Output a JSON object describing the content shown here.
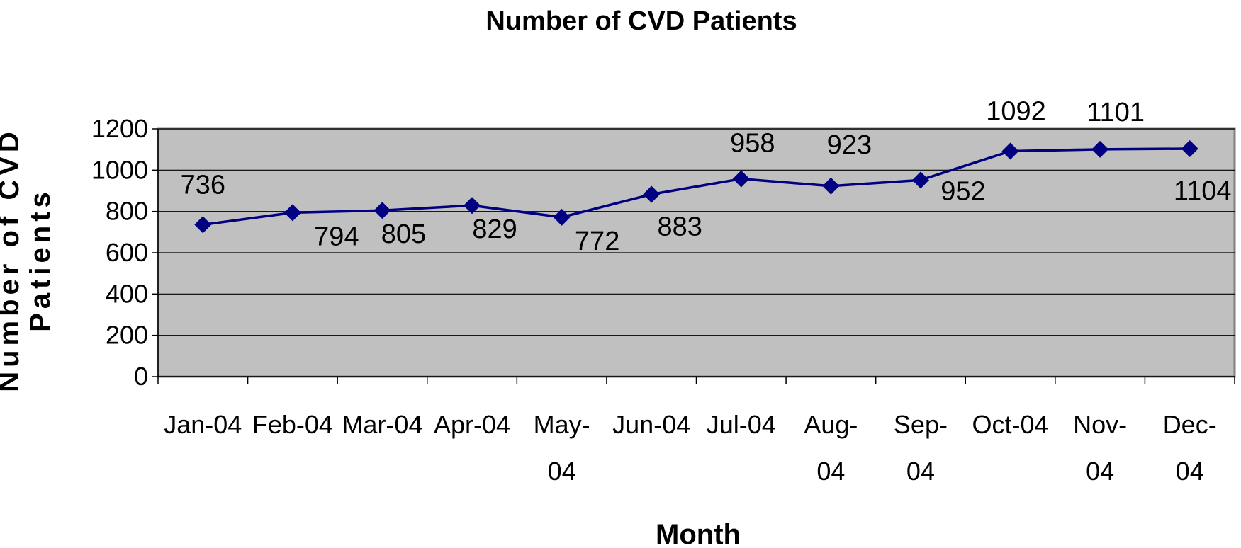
{
  "chart_data": {
    "type": "line",
    "title": "Number of CVD Patients",
    "x_label": "Month",
    "y_label": "Number of CVD Patients",
    "categories": [
      "Jan-04",
      "Feb-04",
      "Mar-04",
      "Apr-04",
      "May-04",
      "Jun-04",
      "Jul-04",
      "Aug-04",
      "Sep-04",
      "Oct-04",
      "Nov-04",
      "Dec-04"
    ],
    "series": [
      {
        "name": "Number of CVD Patients",
        "color": "#000080",
        "values": [
          736,
          794,
          805,
          829,
          772,
          883,
          958,
          923,
          952,
          1092,
          1101,
          1104
        ]
      }
    ],
    "ylim": [
      0,
      1200
    ],
    "yticks": [
      0,
      200,
      400,
      600,
      800,
      1000,
      1200
    ],
    "grid": true
  }
}
